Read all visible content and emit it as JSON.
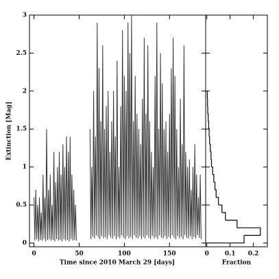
{
  "chart_data": [
    {
      "type": "line",
      "xlabel": "Time since 2010 March 29 [days]",
      "ylabel": "Extinction [Mag]",
      "color": "#333333",
      "xlim": [
        -5,
        190
      ],
      "xticks": [
        0,
        50,
        100,
        150
      ],
      "ylim": [
        -0.05,
        3.0
      ],
      "yticks": [
        0,
        0.5,
        1,
        1.5,
        2,
        2.5,
        3
      ],
      "x": [
        0,
        1,
        2,
        3,
        4,
        5,
        6,
        7,
        8,
        9,
        10,
        11,
        12,
        13,
        14,
        15,
        16,
        17,
        18,
        19,
        20,
        21,
        22,
        23,
        24,
        25,
        26,
        27,
        28,
        29,
        30,
        31,
        32,
        33,
        34,
        35,
        36,
        37,
        38,
        39,
        40,
        41,
        42,
        43,
        44,
        45,
        46,
        47,
        55,
        62,
        63,
        64,
        65,
        66,
        67,
        68,
        69,
        70,
        71,
        72,
        73,
        74,
        75,
        76,
        77,
        78,
        79,
        80,
        81,
        82,
        83,
        84,
        85,
        86,
        87,
        88,
        89,
        90,
        91,
        92,
        93,
        94,
        95,
        96,
        97,
        98,
        99,
        100,
        101,
        102,
        103,
        104,
        105,
        106,
        107,
        108,
        109,
        110,
        111,
        112,
        113,
        114,
        115,
        116,
        117,
        118,
        119,
        120,
        121,
        122,
        123,
        124,
        125,
        126,
        127,
        128,
        129,
        130,
        131,
        132,
        133,
        134,
        135,
        136,
        137,
        138,
        139,
        140,
        141,
        142,
        143,
        144,
        145,
        146,
        147,
        148,
        149,
        150,
        151,
        152,
        153,
        154,
        155,
        156,
        157,
        158,
        159,
        160,
        161,
        162,
        163,
        164,
        165,
        166,
        167,
        168,
        169,
        170,
        171,
        172,
        173,
        174,
        175,
        176,
        177,
        178,
        179,
        180,
        181,
        182,
        183,
        184,
        185
      ],
      "values": [
        0.6,
        0.03,
        0.7,
        0.05,
        0.5,
        0.02,
        0.6,
        0.04,
        0.4,
        0.03,
        0.9,
        0.05,
        0.6,
        0.02,
        1.5,
        0.04,
        0.7,
        0.05,
        0.9,
        0.03,
        0.5,
        0.04,
        1.2,
        0.02,
        0.8,
        0.05,
        1.0,
        0.03,
        1.2,
        0.04,
        0.9,
        0.02,
        1.3,
        0.05,
        1.0,
        0.03,
        1.4,
        0.04,
        1.2,
        0.02,
        1.4,
        0.05,
        0.9,
        0.03,
        0.7,
        0.04,
        0.5,
        0.03,
        null,
        1.5,
        0.05,
        1.0,
        0.08,
        2.0,
        0.06,
        1.4,
        0.1,
        2.9,
        0.07,
        2.3,
        0.05,
        1.6,
        0.09,
        2.6,
        0.06,
        1.5,
        0.08,
        1.8,
        0.05,
        2.0,
        0.1,
        1.2,
        0.07,
        1.6,
        0.06,
        2.0,
        0.09,
        1.4,
        0.05,
        2.4,
        0.08,
        1.0,
        0.06,
        1.8,
        0.1,
        2.8,
        0.07,
        2.2,
        0.05,
        2.0,
        0.09,
        2.9,
        0.06,
        2.5,
        0.08,
        3.0,
        0.05,
        1.6,
        0.1,
        2.2,
        0.07,
        1.7,
        0.06,
        1.5,
        0.09,
        1.3,
        0.05,
        1.9,
        0.08,
        2.7,
        0.06,
        1.7,
        0.1,
        2.6,
        0.07,
        1.6,
        0.05,
        1.2,
        0.09,
        1.0,
        0.06,
        2.2,
        0.08,
        2.9,
        0.05,
        1.5,
        0.1,
        2.5,
        0.07,
        2.1,
        0.06,
        1.5,
        0.09,
        1.6,
        0.05,
        1.2,
        0.08,
        1.7,
        0.06,
        2.3,
        0.1,
        2.7,
        0.07,
        2.2,
        0.05,
        1.5,
        0.09,
        1.0,
        0.06,
        1.9,
        0.08,
        1.3,
        0.05,
        2.6,
        0.1,
        1.2,
        0.07,
        1.0,
        0.06,
        1.1,
        0.09,
        0.7,
        0.05,
        1.0,
        0.08,
        1.3,
        0.06,
        0.9,
        0.1,
        0.6,
        0.07,
        0.9,
        0.05
      ]
    },
    {
      "type": "histogram",
      "xlabel": "Fraction",
      "color": "#000000",
      "xlim": [
        -0.005,
        0.26
      ],
      "xticks": [
        0,
        0.1,
        0.2
      ],
      "ylim": [
        -0.05,
        3.0
      ],
      "yticks": [
        0,
        0.5,
        1,
        1.5,
        2,
        2.5,
        3
      ],
      "bins": [
        0,
        0.1,
        0.2,
        0.3,
        0.4,
        0.5,
        0.6,
        0.7,
        0.8,
        0.9,
        1.0,
        1.1,
        1.2,
        1.3,
        1.4,
        1.5,
        1.6,
        1.7,
        1.8,
        1.9,
        2.0
      ],
      "values": [
        0.16,
        0.23,
        0.13,
        0.08,
        0.065,
        0.05,
        0.04,
        0.035,
        0.03,
        0.025,
        0.02,
        0.018,
        0.015,
        0.012,
        0.01,
        0.008,
        0.006,
        0.004,
        0.003,
        0.002
      ]
    }
  ]
}
